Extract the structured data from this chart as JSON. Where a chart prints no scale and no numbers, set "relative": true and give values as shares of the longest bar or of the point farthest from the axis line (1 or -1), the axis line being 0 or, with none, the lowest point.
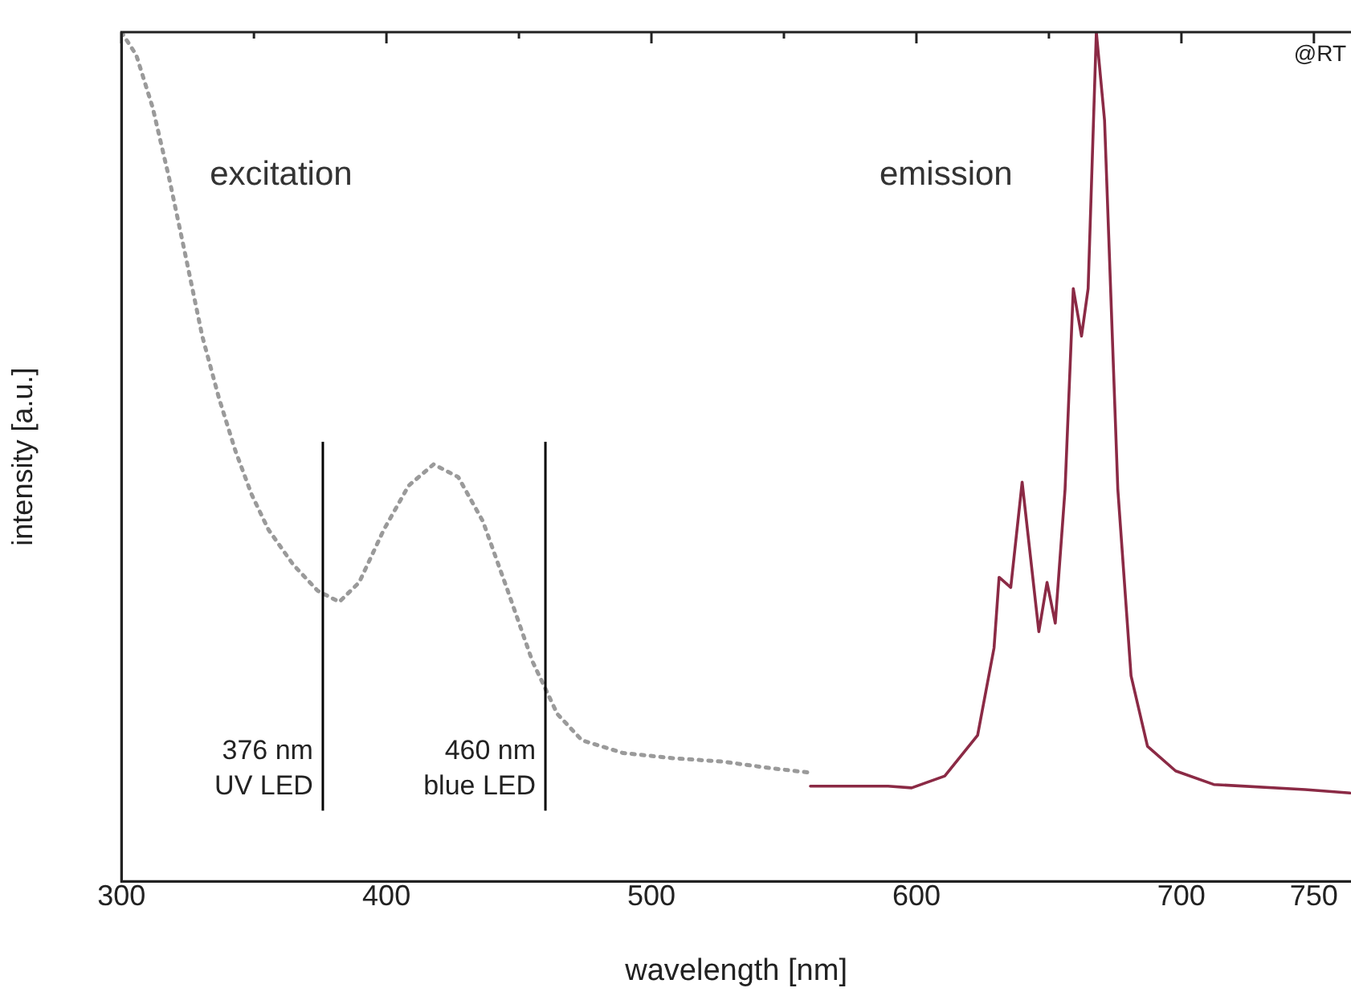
{
  "chart_data": {
    "type": "line",
    "xlabel": "wavelength [nm]",
    "ylabel": "intensity [a.u.]",
    "relative": true,
    "tick_labels": "x",
    "grid": false,
    "legend": false,
    "marker": "none",
    "xlim": [
      300,
      764
    ],
    "xticks": [
      300,
      {
        "value": 350,
        "label": null
      },
      400,
      {
        "value": 450,
        "label": null
      },
      500,
      {
        "value": 550,
        "label": null
      },
      600,
      {
        "value": 650,
        "label": null
      },
      700,
      750
    ],
    "series": [
      {
        "name": "excitation",
        "color": "#9a9a9a",
        "line_style": "dotted",
        "x": [
          300,
          305.6,
          311.8,
          318,
          324.3,
          330.5,
          336.8,
          343,
          349.2,
          355.5,
          364.8,
          374.1,
          382.2,
          389.7,
          399,
          408.4,
          417.8,
          427.1,
          436.4,
          445.8,
          455.1,
          464.5,
          473.8,
          489.4,
          508.1,
          526.8,
          545.5,
          559.8
        ],
        "values": [
          1,
          0.973,
          0.911,
          0.828,
          0.735,
          0.642,
          0.569,
          0.507,
          0.455,
          0.414,
          0.373,
          0.342,
          0.329,
          0.352,
          0.414,
          0.466,
          0.491,
          0.476,
          0.424,
          0.342,
          0.259,
          0.197,
          0.166,
          0.151,
          0.145,
          0.141,
          0.133,
          0.128
        ]
      },
      {
        "name": "emission",
        "color": "#8b2a45",
        "line_style": "solid",
        "x": [
          560,
          589.3,
          598.2,
          610.7,
          623.1,
          629.3,
          631.2,
          635.6,
          639.9,
          646.2,
          649.3,
          652.4,
          656.1,
          659.2,
          662.3,
          664.8,
          667.9,
          671,
          676,
          681,
          687.2,
          697.8,
          712.2,
          746.7,
          763.6
        ],
        "values": [
          0.112,
          0.112,
          0.11,
          0.124,
          0.172,
          0.275,
          0.358,
          0.346,
          0.47,
          0.294,
          0.352,
          0.304,
          0.462,
          0.698,
          0.642,
          0.698,
          1,
          0.896,
          0.462,
          0.242,
          0.159,
          0.13,
          0.114,
          0.108,
          0.104
        ]
      }
    ],
    "ref_lines": [
      {
        "axis": "x",
        "value": 376,
        "label": "376 nm\nUV LED",
        "color": "#000000"
      },
      {
        "axis": "x",
        "value": 460,
        "label": "460 nm\nblue LED",
        "color": "#000000"
      }
    ],
    "annotations": [
      "@RT"
    ]
  }
}
